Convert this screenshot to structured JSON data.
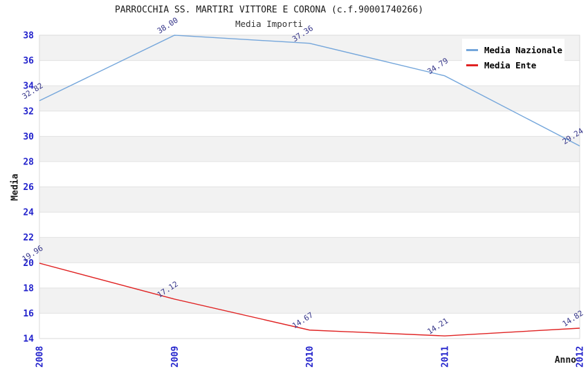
{
  "header": {
    "title": "PARROCCHIA SS. MARTIRI VITTORE E CORONA (c.f.90001740266)",
    "subtitle": "Media Importi"
  },
  "chart_data": {
    "type": "line",
    "x": [
      "2008",
      "2009",
      "2010",
      "2011",
      "2012"
    ],
    "xlabel": "Anno",
    "ylabel": "Media",
    "ylim": [
      14,
      38
    ],
    "ytick_step": 2,
    "grid": "horizontal-bands",
    "legend_position": "top-right",
    "point_labels_shown": true,
    "series": [
      {
        "name": "Media Nazionale",
        "color": "#74a6db",
        "values": [
          32.82,
          38.0,
          37.36,
          34.79,
          29.24
        ]
      },
      {
        "name": "Media Ente",
        "color": "#e02222",
        "values": [
          19.96,
          17.12,
          14.67,
          14.21,
          14.82
        ]
      }
    ]
  },
  "colors": {
    "tick_label": "#2323cc",
    "point_label": "#333388",
    "band_fill": "#f2f2f2",
    "plot_border": "#d9d9d9",
    "grid_line": "#e2e2e2",
    "background": "#ffffff"
  }
}
